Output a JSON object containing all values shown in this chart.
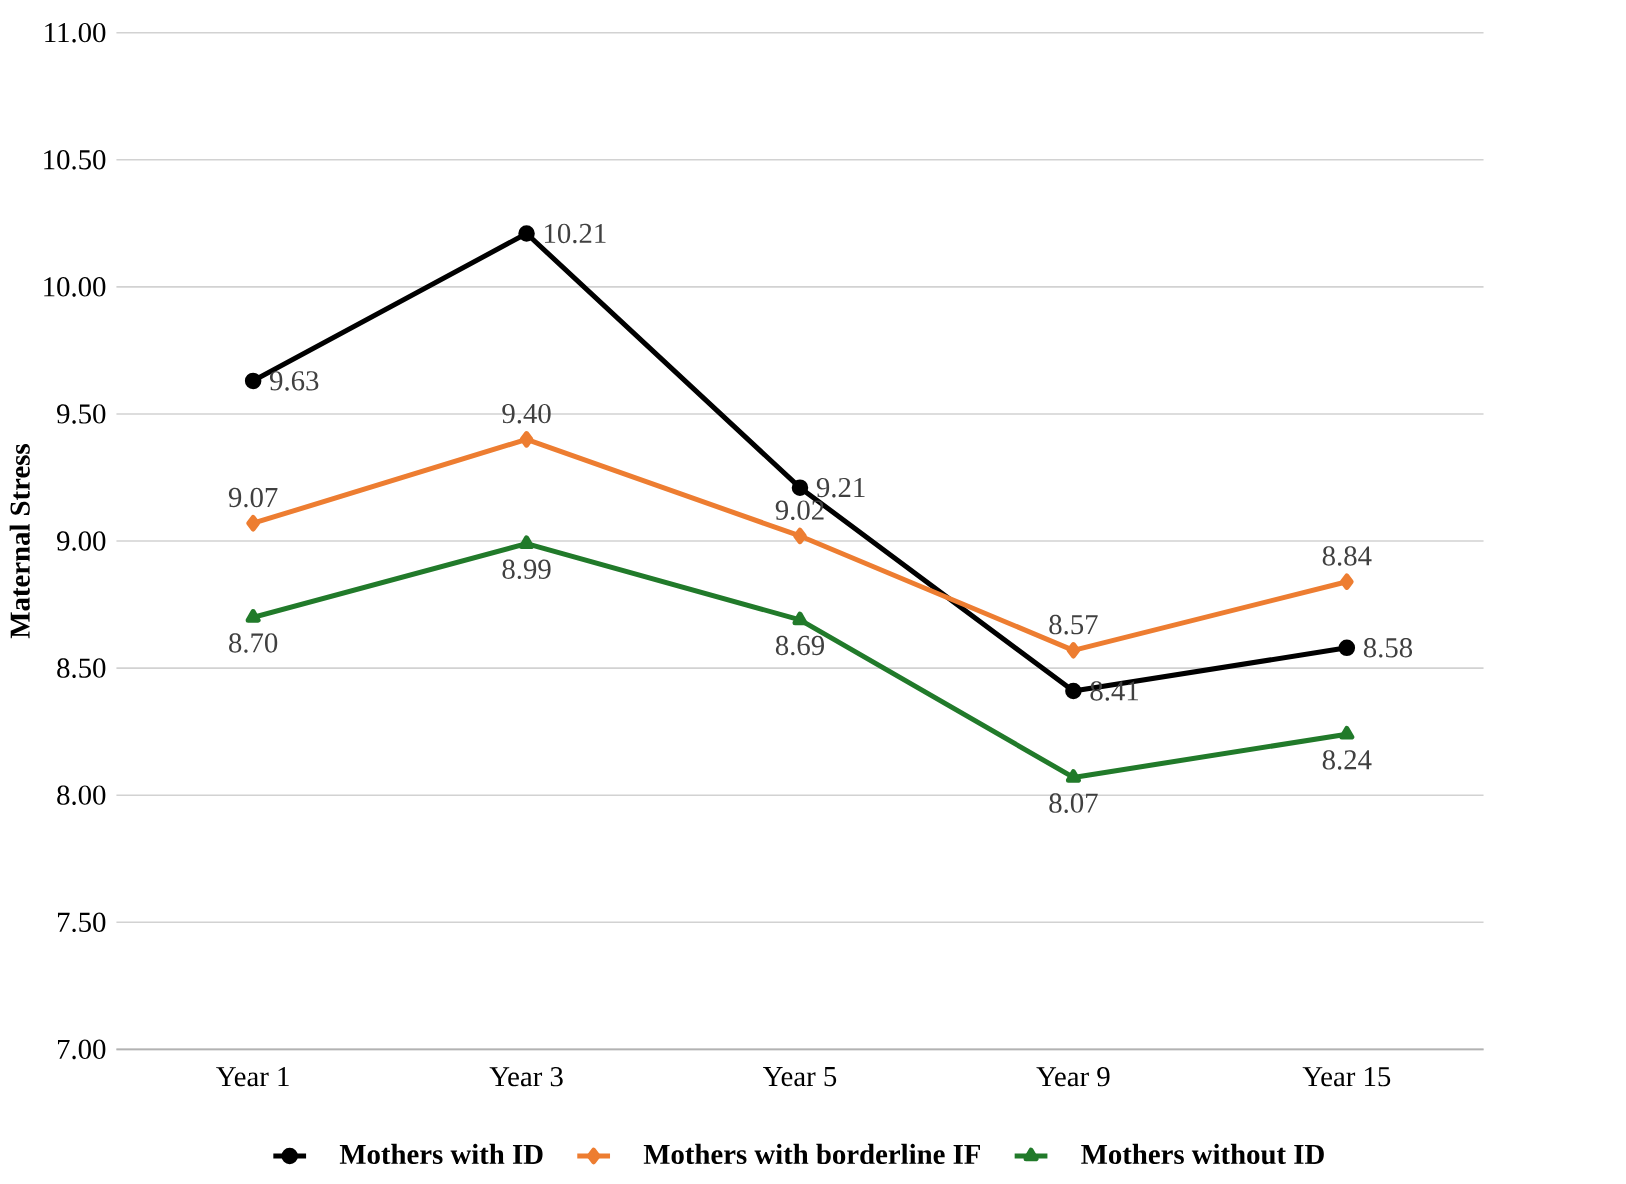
{
  "chart_data": {
    "type": "line",
    "ylabel": "Maternal Stress",
    "categories": [
      "Year 1",
      "Year 3",
      "Year 5",
      "Year 9",
      "Year 15"
    ],
    "series": [
      {
        "name": "Mothers with ID",
        "color": "#000000",
        "marker": "circle",
        "values": [
          9.63,
          10.21,
          9.21,
          8.41,
          8.58
        ],
        "value_labels": [
          "9.63",
          "10.21",
          "9.21",
          "8.41",
          "8.58"
        ]
      },
      {
        "name": "Mothers with borderline IF",
        "color": "#ed7d31",
        "marker": "diamond",
        "values": [
          9.07,
          9.4,
          9.02,
          8.57,
          8.84
        ],
        "value_labels": [
          "9.07",
          "9.40",
          "9.02",
          "8.57",
          "8.84"
        ]
      },
      {
        "name": "Mothers without ID",
        "color": "#217a2a",
        "marker": "triangle",
        "values": [
          8.7,
          8.99,
          8.69,
          8.07,
          8.24
        ],
        "value_labels": [
          "8.70",
          "8.99",
          "8.69",
          "8.07",
          "8.24"
        ]
      }
    ],
    "ylim": [
      7,
      11
    ],
    "yticks": [
      {
        "value": 7,
        "label": "7.00"
      },
      {
        "value": 7.5,
        "label": "7.50"
      },
      {
        "value": 8,
        "label": "8.00"
      },
      {
        "value": 8.5,
        "label": "8.50"
      },
      {
        "value": 9,
        "label": "9.00"
      },
      {
        "value": 9.5,
        "label": "9.50"
      },
      {
        "value": 10,
        "label": "10.00"
      },
      {
        "value": 10.5,
        "label": "10.50"
      },
      {
        "value": 11,
        "label": "11.00"
      }
    ],
    "grid": "y",
    "legend": "bottom",
    "line_style": "solid"
  }
}
